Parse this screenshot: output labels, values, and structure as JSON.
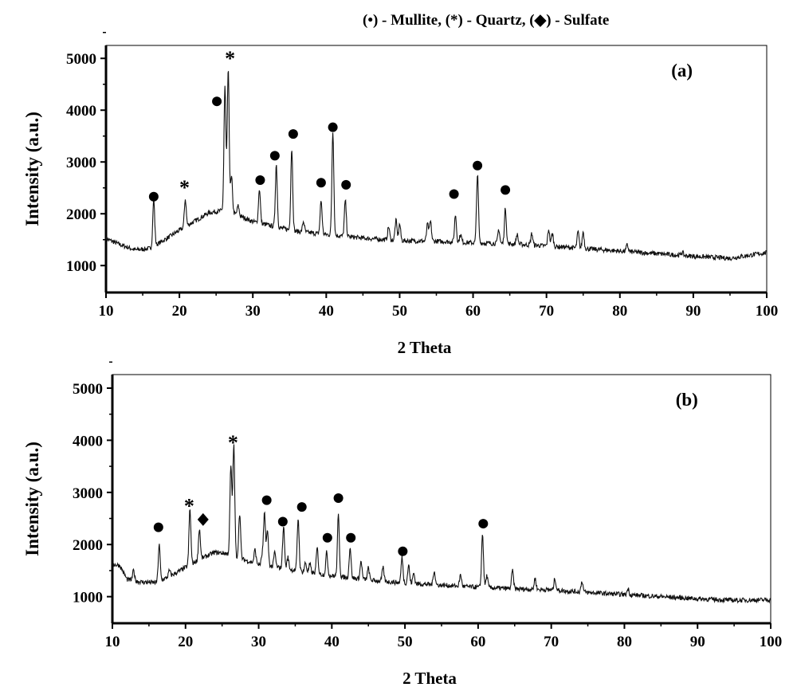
{
  "legend": "(•) - Mullite, (*) - Quartz, (◆) - Sulfate",
  "chart_data": [
    {
      "type": "line",
      "panel_label": "(a)",
      "xlabel": "2 Theta",
      "ylabel": "Intensity (a.u.)",
      "xlim": [
        10,
        100
      ],
      "ylim": [
        480,
        5250
      ],
      "xticks": [
        10,
        20,
        30,
        40,
        50,
        60,
        70,
        80,
        90,
        100
      ],
      "yticks": [
        1000,
        2000,
        3000,
        4000,
        5000
      ],
      "baseline": [
        [
          10,
          1520
        ],
        [
          12,
          1400
        ],
        [
          14,
          1300
        ],
        [
          16,
          1330
        ],
        [
          18,
          1500
        ],
        [
          20,
          1680
        ],
        [
          22,
          1850
        ],
        [
          24,
          2020
        ],
        [
          25.8,
          2060
        ],
        [
          27.5,
          2000
        ],
        [
          30,
          1850
        ],
        [
          33,
          1750
        ],
        [
          36,
          1660
        ],
        [
          40,
          1600
        ],
        [
          45,
          1530
        ],
        [
          50,
          1480
        ],
        [
          55,
          1470
        ],
        [
          60,
          1440
        ],
        [
          65,
          1420
        ],
        [
          70,
          1380
        ],
        [
          75,
          1330
        ],
        [
          80,
          1280
        ],
        [
          85,
          1230
        ],
        [
          90,
          1180
        ],
        [
          95,
          1140
        ],
        [
          100,
          1250
        ]
      ],
      "peaks": [
        [
          16.5,
          2280
        ],
        [
          20.8,
          2280
        ],
        [
          26.2,
          4450
        ],
        [
          26.65,
          4780
        ],
        [
          27.1,
          2700
        ],
        [
          28.0,
          2150
        ],
        [
          30.9,
          2480
        ],
        [
          33.2,
          2950
        ],
        [
          35.3,
          3260
        ],
        [
          36.9,
          1850
        ],
        [
          39.3,
          2250
        ],
        [
          40.9,
          3600
        ],
        [
          42.6,
          2250
        ],
        [
          48.5,
          1750
        ],
        [
          49.5,
          1870
        ],
        [
          50.0,
          1800
        ],
        [
          53.8,
          1800
        ],
        [
          54.2,
          1850
        ],
        [
          57.6,
          1980
        ],
        [
          58.3,
          1600
        ],
        [
          60.6,
          2750
        ],
        [
          63.5,
          1700
        ],
        [
          64.4,
          2100
        ],
        [
          66.0,
          1600
        ],
        [
          68.0,
          1620
        ],
        [
          70.3,
          1700
        ],
        [
          70.8,
          1620
        ],
        [
          74.3,
          1650
        ],
        [
          75.0,
          1650
        ],
        [
          81,
          1400
        ],
        [
          88.5,
          1260
        ]
      ],
      "markers": [
        {
          "phase": "Mullite",
          "symbol": "●",
          "x": 16.5,
          "y": 2330
        },
        {
          "phase": "Quartz",
          "symbol": "*",
          "x": 20.7,
          "y": 2560
        },
        {
          "phase": "Mullite",
          "symbol": "●",
          "x": 25.1,
          "y": 4170
        },
        {
          "phase": "Quartz",
          "symbol": "*",
          "x": 26.9,
          "y": 5050
        },
        {
          "phase": "Mullite",
          "symbol": "●",
          "x": 31.0,
          "y": 2650
        },
        {
          "phase": "Mullite",
          "symbol": "●",
          "x": 33.0,
          "y": 3120
        },
        {
          "phase": "Mullite",
          "symbol": "●",
          "x": 35.5,
          "y": 3540
        },
        {
          "phase": "Mullite",
          "symbol": "●",
          "x": 39.3,
          "y": 2600
        },
        {
          "phase": "Mullite",
          "symbol": "●",
          "x": 40.9,
          "y": 3670
        },
        {
          "phase": "Mullite",
          "symbol": "●",
          "x": 42.7,
          "y": 2560
        },
        {
          "phase": "Mullite",
          "symbol": "●",
          "x": 57.4,
          "y": 2380
        },
        {
          "phase": "Mullite",
          "symbol": "●",
          "x": 60.6,
          "y": 2930
        },
        {
          "phase": "Mullite",
          "symbol": "●",
          "x": 64.4,
          "y": 2460
        }
      ]
    },
    {
      "type": "line",
      "panel_label": "(b)",
      "xlabel": "2 Theta",
      "ylabel": "Intensity (a.u.)",
      "xlim": [
        10,
        100
      ],
      "ylim": [
        490,
        5260
      ],
      "xticks": [
        10,
        20,
        30,
        40,
        50,
        60,
        70,
        80,
        90,
        100
      ],
      "yticks": [
        1000,
        2000,
        3000,
        4000,
        5000
      ],
      "baseline": [
        [
          10,
          1620
        ],
        [
          11,
          1600
        ],
        [
          12,
          1330
        ],
        [
          14,
          1280
        ],
        [
          16,
          1270
        ],
        [
          18,
          1400
        ],
        [
          20,
          1560
        ],
        [
          22,
          1720
        ],
        [
          24,
          1850
        ],
        [
          25.5,
          1830
        ],
        [
          27,
          1750
        ],
        [
          30,
          1620
        ],
        [
          33,
          1550
        ],
        [
          36,
          1480
        ],
        [
          40,
          1400
        ],
        [
          45,
          1320
        ],
        [
          50,
          1260
        ],
        [
          55,
          1220
        ],
        [
          60,
          1180
        ],
        [
          65,
          1150
        ],
        [
          70,
          1130
        ],
        [
          75,
          1080
        ],
        [
          80,
          1040
        ],
        [
          85,
          1000
        ],
        [
          90,
          960
        ],
        [
          95,
          930
        ],
        [
          100,
          940
        ]
      ],
      "peaks": [
        [
          12.9,
          1500
        ],
        [
          16.4,
          1990
        ],
        [
          17.8,
          1500
        ],
        [
          20.6,
          2680
        ],
        [
          21.9,
          2300
        ],
        [
          26.2,
          3500
        ],
        [
          26.6,
          3900
        ],
        [
          27.4,
          2600
        ],
        [
          29.5,
          1900
        ],
        [
          30.5,
          1800
        ],
        [
          30.8,
          2570
        ],
        [
          31.2,
          2250
        ],
        [
          32.2,
          1850
        ],
        [
          33.4,
          2350
        ],
        [
          34.0,
          1750
        ],
        [
          35.4,
          2500
        ],
        [
          36.4,
          1650
        ],
        [
          37.0,
          1620
        ],
        [
          38.0,
          1930
        ],
        [
          39.3,
          1850
        ],
        [
          40.9,
          2560
        ],
        [
          42.5,
          1950
        ],
        [
          44.0,
          1680
        ],
        [
          45.0,
          1550
        ],
        [
          47.0,
          1550
        ],
        [
          49.6,
          1750
        ],
        [
          50.5,
          1600
        ],
        [
          51.2,
          1450
        ],
        [
          54.0,
          1500
        ],
        [
          57.6,
          1420
        ],
        [
          60.6,
          2200
        ],
        [
          61.2,
          1400
        ],
        [
          64.7,
          1500
        ],
        [
          67.8,
          1350
        ],
        [
          70.5,
          1350
        ],
        [
          74.2,
          1300
        ],
        [
          80.5,
          1150
        ]
      ],
      "markers": [
        {
          "phase": "Mullite",
          "symbol": "●",
          "x": 16.3,
          "y": 2330
        },
        {
          "phase": "Quartz",
          "symbol": "*",
          "x": 20.5,
          "y": 2790
        },
        {
          "phase": "Sulfate",
          "symbol": "◆",
          "x": 22.4,
          "y": 2480
        },
        {
          "phase": "Quartz",
          "symbol": "*",
          "x": 26.5,
          "y": 4010
        },
        {
          "phase": "Mullite",
          "symbol": "●",
          "x": 31.1,
          "y": 2850
        },
        {
          "phase": "Mullite",
          "symbol": "●",
          "x": 33.3,
          "y": 2440
        },
        {
          "phase": "Mullite",
          "symbol": "●",
          "x": 35.9,
          "y": 2720
        },
        {
          "phase": "Mullite",
          "symbol": "●",
          "x": 39.4,
          "y": 2130
        },
        {
          "phase": "Mullite",
          "symbol": "●",
          "x": 40.9,
          "y": 2890
        },
        {
          "phase": "Mullite",
          "symbol": "●",
          "x": 42.6,
          "y": 2130
        },
        {
          "phase": "Mullite",
          "symbol": "●",
          "x": 49.7,
          "y": 1870
        },
        {
          "phase": "Mullite",
          "symbol": "●",
          "x": 60.7,
          "y": 2400
        }
      ]
    }
  ]
}
